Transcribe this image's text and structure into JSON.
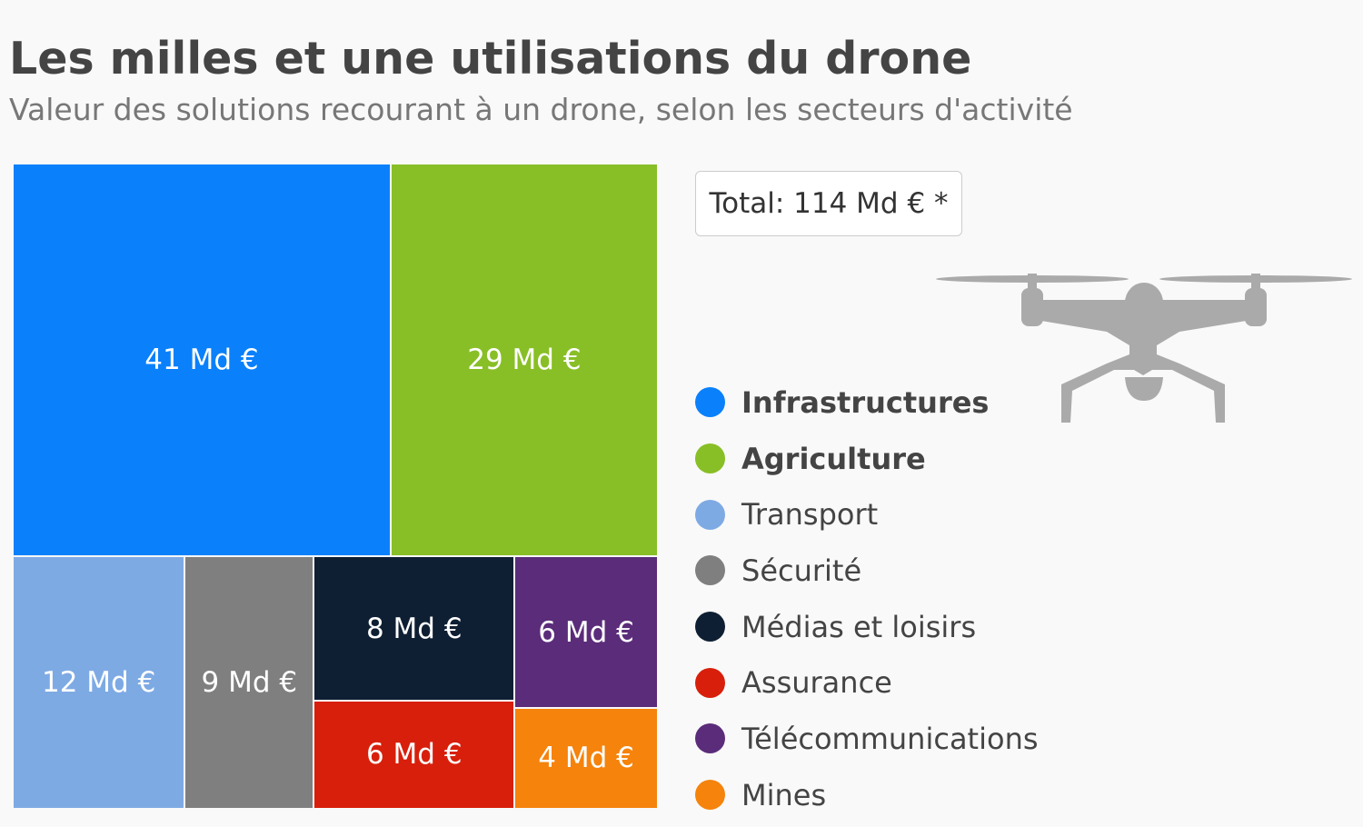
{
  "header": {
    "title": "Les milles et une utilisations du drone",
    "subtitle": "Valeur des solutions recourant à un drone, selon les secteurs d'activité"
  },
  "total_label": "Total: 114 Md € *",
  "drone_icon": "drone-icon",
  "chart_data": {
    "type": "treemap",
    "title": "Les milles et une utilisations du drone",
    "unit": "Md €",
    "total": 114,
    "legend_position": "right",
    "items": [
      {
        "name": "Infrastructures",
        "value": 41,
        "label": "41 Md €",
        "color": "#0a80fb"
      },
      {
        "name": "Agriculture",
        "value": 29,
        "label": "29 Md €",
        "color": "#88bf26"
      },
      {
        "name": "Transport",
        "value": 12,
        "label": "12 Md €",
        "color": "#7eaae4"
      },
      {
        "name": "Sécurité",
        "value": 9,
        "label": "9 Md €",
        "color": "#7f7f7f"
      },
      {
        "name": "Médias et loisirs",
        "value": 8,
        "label": "8 Md €",
        "color": "#0f1f33"
      },
      {
        "name": "Assurance",
        "value": 6,
        "label": "6 Md €",
        "color": "#d81f0b"
      },
      {
        "name": "Télécommunications",
        "value": 6,
        "label": "6 Md €",
        "color": "#5b2c7a"
      },
      {
        "name": "Mines",
        "value": 4,
        "label": "4 Md €",
        "color": "#f5830c"
      }
    ]
  }
}
